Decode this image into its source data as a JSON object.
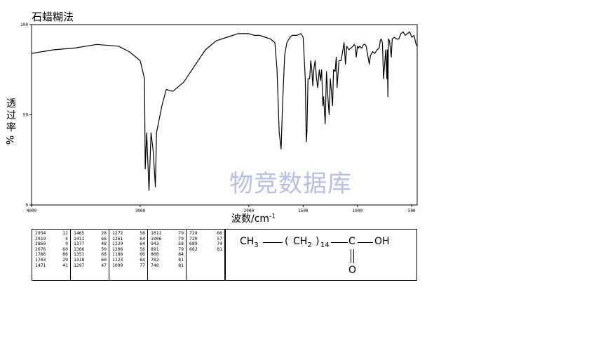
{
  "title": "石蜡糊法",
  "watermark": "物竞数据库",
  "chart_data": {
    "type": "line",
    "title": "石蜡糊法",
    "xlabel": "波数/cm⁻¹",
    "ylabel": "透过率%",
    "xlim": [
      4000,
      450
    ],
    "ylim": [
      0,
      100
    ],
    "x_ticks": [
      4000,
      3000,
      2000,
      1500,
      1000,
      500
    ],
    "y_ticks": [
      100,
      50,
      0
    ],
    "series": [
      {
        "x": [
          4000,
          3800,
          3600,
          3400,
          3200,
          3100,
          3000,
          2960,
          2954,
          2940,
          2919,
          2900,
          2880,
          2860,
          2850,
          2800,
          2760,
          2700,
          2600,
          2500,
          2400,
          2300,
          2200,
          2100,
          2000,
          1950,
          1900,
          1850,
          1800,
          1760,
          1740,
          1720,
          1703,
          1690,
          1670,
          1650,
          1620,
          1600,
          1560,
          1520,
          1500,
          1480,
          1471,
          1465,
          1455,
          1440,
          1430,
          1420,
          1411,
          1400,
          1390,
          1377,
          1366,
          1351,
          1340,
          1330,
          1318,
          1312,
          1297,
          1285,
          1272,
          1261,
          1250,
          1229,
          1220,
          1206,
          1195,
          1188,
          1170,
          1150,
          1123,
          1110,
          1099,
          1080,
          1060,
          1040,
          1030,
          1020,
          1011,
          1000,
          990,
          980,
          960,
          943,
          930,
          920,
          891,
          880,
          860,
          840,
          820,
          800,
          790,
          782,
          770,
          760,
          740,
          729,
          725,
          720,
          715,
          705,
          689,
          680,
          662,
          640,
          620,
          600,
          580,
          560,
          540,
          520,
          500,
          480,
          460,
          450
        ],
        "y": [
          84,
          86,
          87,
          89,
          88,
          85,
          80,
          70,
          20,
          40,
          8,
          40,
          30,
          10,
          40,
          55,
          64,
          63,
          68,
          77,
          86,
          91,
          93,
          95,
          95,
          94,
          94,
          93,
          92,
          90,
          75,
          40,
          31,
          55,
          83,
          90,
          93,
          94,
          94,
          95,
          93,
          70,
          35,
          40,
          70,
          70,
          80,
          75,
          66,
          76,
          80,
          70,
          65,
          75,
          69,
          75,
          55,
          60,
          45,
          74,
          60,
          50,
          70,
          55,
          75,
          74,
          82,
          65,
          80,
          80,
          90,
          78,
          88,
          86,
          87,
          88,
          89,
          88,
          82,
          88,
          87,
          88,
          87,
          89,
          89,
          88,
          78,
          83,
          85,
          84,
          86,
          87,
          91,
          92,
          90,
          70,
          86,
          70,
          86,
          60,
          92,
          91,
          82,
          92,
          93,
          92,
          92,
          95,
          96,
          94,
          95,
          96,
          93,
          94,
          89,
          88
        ]
      }
    ],
    "peak_table": [
      [
        "2954",
        "12"
      ],
      [
        "2919",
        "4"
      ],
      [
        "2860",
        "9"
      ],
      [
        "2676",
        "60"
      ],
      [
        "1786",
        "86"
      ],
      [
        "1703",
        "29"
      ],
      [
        "1471",
        "41"
      ],
      [
        "1465",
        "28"
      ],
      [
        "1411",
        "66"
      ],
      [
        "1377",
        "48"
      ],
      [
        "1366",
        "50"
      ],
      [
        "1351",
        "68"
      ],
      [
        "1318",
        "60"
      ],
      [
        "1297",
        "47"
      ],
      [
        "1272",
        "58"
      ],
      [
        "1261",
        "64"
      ],
      [
        "1229",
        "64"
      ],
      [
        "1206",
        "56"
      ],
      [
        "1188",
        "66"
      ],
      [
        "1123",
        "84"
      ],
      [
        "1099",
        "77"
      ],
      [
        "1011",
        "79"
      ],
      [
        "1006",
        "79"
      ],
      [
        "943",
        "58"
      ],
      [
        "891",
        "79"
      ],
      [
        "860",
        "84"
      ],
      [
        "782",
        "81"
      ],
      [
        "740",
        "81"
      ],
      [
        "729",
        "66"
      ],
      [
        "720",
        "57"
      ],
      [
        "689",
        "74"
      ],
      [
        "662",
        "81"
      ]
    ]
  },
  "axis": {
    "ylabel_chars": [
      "透",
      "过",
      "率",
      "%"
    ],
    "xlabel_main": "波数/cm",
    "xlabel_sup": "-1"
  },
  "structure": {
    "ch3": "CH",
    "ch3_sub": "3",
    "paren_open": "(",
    "ch2": "CH",
    "ch2_sub": "2",
    "paren_close": ")",
    "repeat": "14",
    "carbon": "C",
    "oh": "OH",
    "oxygen": "O"
  }
}
